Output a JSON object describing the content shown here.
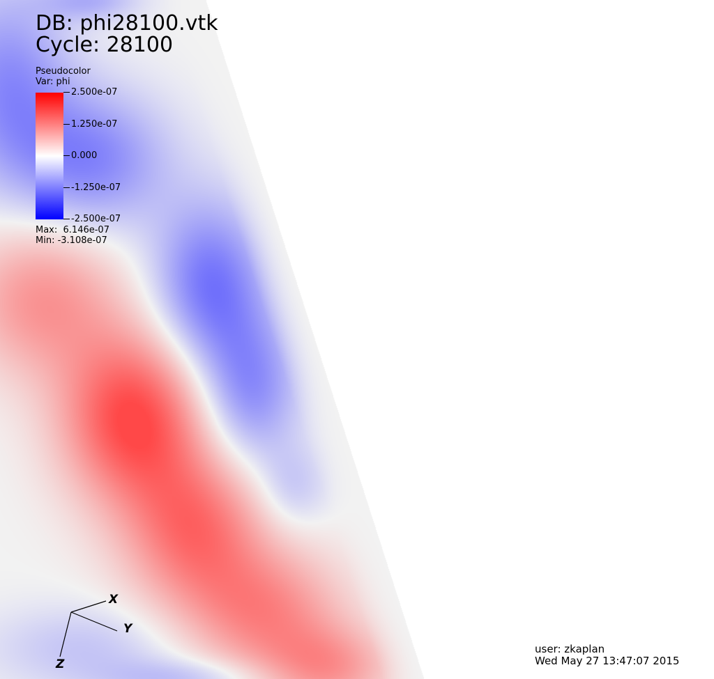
{
  "header": {
    "db_label": "DB: phi28100.vtk",
    "cycle_label": "Cycle: 28100"
  },
  "legend": {
    "plot_type": "Pseudocolor",
    "variable": "Var: phi",
    "ticks": [
      "2.500e-07",
      "1.250e-07",
      "0.000",
      "-1.250e-07",
      "-2.500e-07"
    ],
    "max_text": "Max:  6.146e-07",
    "min_text": "Min: -3.108e-07",
    "colors": {
      "high": "#ff0000",
      "mid": "#ffffff",
      "low": "#0000ff"
    }
  },
  "axes": {
    "x": "X",
    "y": "Y",
    "z": "Z"
  },
  "footer": {
    "user": "user: zkaplan",
    "date": "Wed May 27 13:47:07 2015"
  }
}
